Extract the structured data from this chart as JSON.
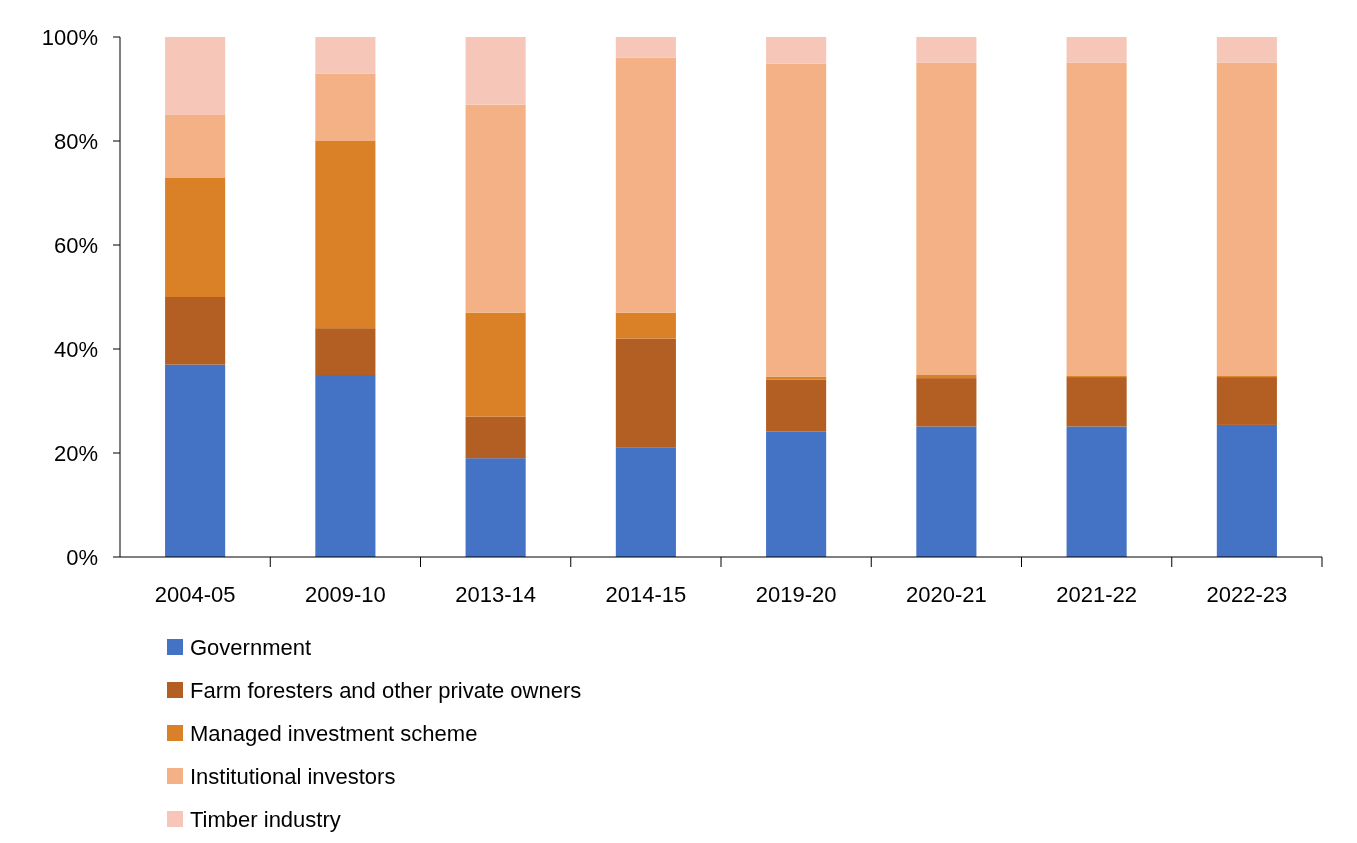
{
  "chart_data": {
    "type": "bar",
    "stacked": true,
    "categories": [
      "2004-05",
      "2009-10",
      "2013-14",
      "2014-15",
      "2019-20",
      "2020-21",
      "2021-22",
      "2022-23"
    ],
    "series": [
      {
        "name": "Government",
        "color": "#4472c4",
        "values": [
          37,
          35,
          19,
          21,
          24.1,
          25.1,
          25.1,
          25.4
        ]
      },
      {
        "name": "Farm foresters and other private owners",
        "color": "#b35e22",
        "values": [
          13,
          9,
          8,
          21,
          10,
          9.3,
          9.5,
          9.2
        ]
      },
      {
        "name": "Managed investment scheme",
        "color": "#da8026",
        "values": [
          23,
          36,
          20,
          5,
          0.6,
          0.6,
          0.2,
          0.2
        ]
      },
      {
        "name": "Institutional investors",
        "color": "#f4b185",
        "values": [
          12,
          13,
          40,
          49,
          60.2,
          60.1,
          60.3,
          60.3
        ]
      },
      {
        "name": "Timber industry",
        "color": "#f6c7b8",
        "values": [
          15,
          7,
          13,
          4,
          5.1,
          4.9,
          4.9,
          4.9
        ]
      }
    ],
    "ylim": [
      0,
      100
    ],
    "yticks": [
      {
        "value": 0,
        "label": "0%"
      },
      {
        "value": 20,
        "label": "20%"
      },
      {
        "value": 40,
        "label": "40%"
      },
      {
        "value": 60,
        "label": "60%"
      },
      {
        "value": 80,
        "label": "80%"
      },
      {
        "value": 100,
        "label": "100%"
      }
    ],
    "grid": false,
    "legend": "bottom"
  }
}
